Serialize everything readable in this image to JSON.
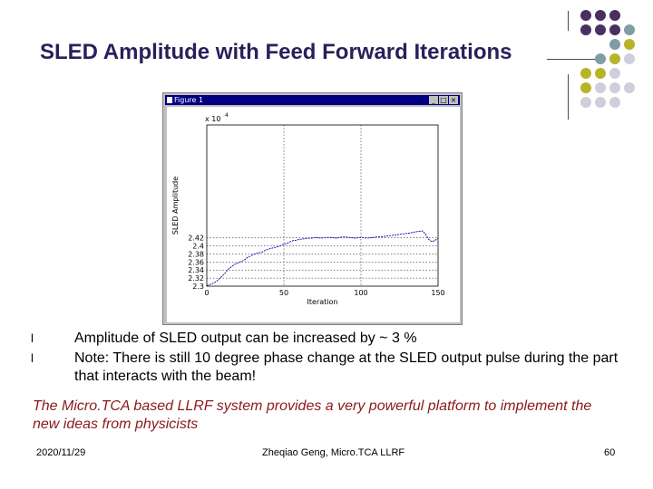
{
  "slide": {
    "title": "SLED Amplitude with Feed Forward Iterations",
    "bullets": [
      "Amplitude of SLED output can be increased by ~ 3 %",
      "Note: There is still 10 degree phase change at the SLED output pulse during the part that interacts with the beam!"
    ],
    "bullet_marker": "l",
    "note": "The Micro.TCA based LLRF system provides a very powerful platform to implement the new ideas from physicists",
    "footer": {
      "date": "2020/11/29",
      "author": "Zheqiao Geng, Micro.TCA LLRF",
      "page": "60"
    }
  },
  "figure": {
    "window_title": "Figure 1",
    "controls": [
      "_",
      "□",
      "×"
    ]
  },
  "colors": {
    "title": "#2a1f5a",
    "note": "#8b1a1a",
    "deco_purple": "#4b2e62",
    "deco_teal": "#7f9ea3",
    "deco_olive": "#b7b42a",
    "deco_grey": "#cfcfdb",
    "plot_line": "#0000aa"
  },
  "chart_data": {
    "type": "line",
    "xlabel": "Iteration",
    "ylabel": "SLED Amplitude",
    "multiplier_label": "x 10",
    "multiplier_exp": "4",
    "xlim": [
      0,
      150
    ],
    "ylim": [
      2.3,
      2.7
    ],
    "xticks": [
      0,
      50,
      100,
      150
    ],
    "yticks": [
      2.3,
      2.32,
      2.34,
      2.36,
      2.38,
      2.4,
      2.42
    ],
    "yticklabels": [
      "2.3",
      "2.32",
      "2.34",
      "2.36",
      "2.38",
      "2.4",
      "2.42"
    ],
    "grid": true,
    "series": [
      {
        "x": [
          0,
          2,
          4,
          6,
          8,
          10,
          12,
          14,
          16,
          18,
          20,
          22,
          24,
          26,
          28,
          30,
          32,
          34,
          36,
          38,
          40,
          42,
          44,
          46,
          48,
          50,
          52,
          54,
          56,
          58,
          60,
          62,
          64,
          66,
          68,
          70,
          72,
          74,
          76,
          78,
          80,
          82,
          84,
          86,
          88,
          90,
          92,
          94,
          96,
          98,
          100,
          102,
          104,
          106,
          108,
          110,
          112,
          114,
          116,
          118,
          120,
          122,
          124,
          126,
          128,
          130,
          132,
          134,
          136,
          138,
          140,
          142,
          144,
          146,
          148,
          150
        ],
        "y": [
          2.301,
          2.304,
          2.307,
          2.311,
          2.318,
          2.325,
          2.333,
          2.342,
          2.348,
          2.354,
          2.357,
          2.361,
          2.364,
          2.37,
          2.374,
          2.378,
          2.381,
          2.383,
          2.385,
          2.389,
          2.392,
          2.394,
          2.396,
          2.398,
          2.401,
          2.404,
          2.406,
          2.41,
          2.413,
          2.414,
          2.416,
          2.417,
          2.418,
          2.419,
          2.419,
          2.42,
          2.42,
          2.419,
          2.42,
          2.421,
          2.421,
          2.42,
          2.419,
          2.421,
          2.422,
          2.422,
          2.421,
          2.42,
          2.419,
          2.42,
          2.421,
          2.42,
          2.419,
          2.42,
          2.421,
          2.422,
          2.422,
          2.423,
          2.424,
          2.425,
          2.426,
          2.427,
          2.428,
          2.429,
          2.43,
          2.431,
          2.432,
          2.434,
          2.435,
          2.436,
          2.437,
          2.428,
          2.416,
          2.41,
          2.414,
          2.418
        ]
      }
    ]
  }
}
